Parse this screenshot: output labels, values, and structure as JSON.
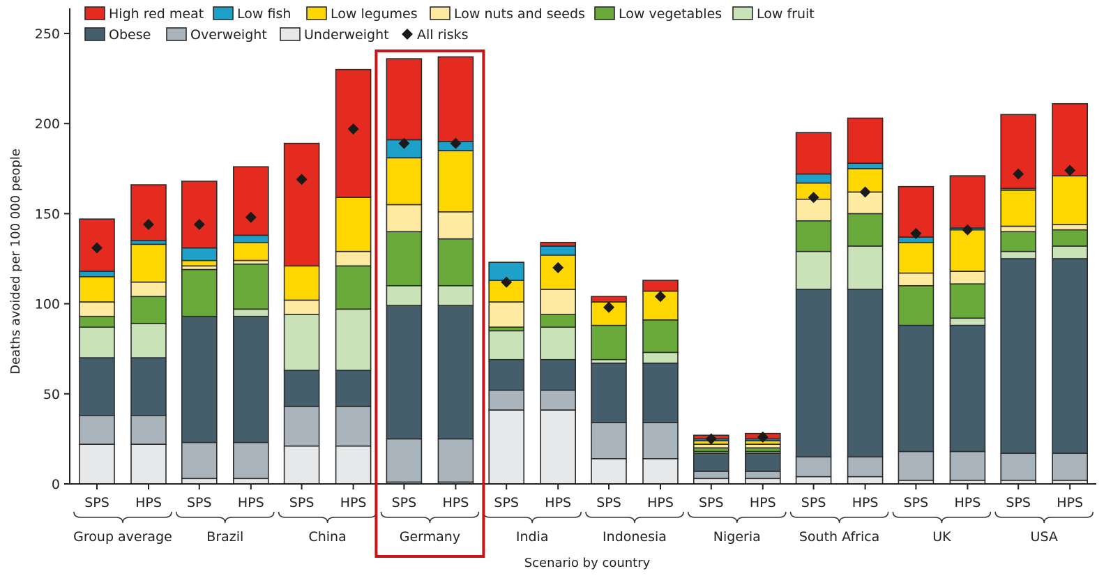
{
  "chart_data": {
    "type": "bar",
    "stacked": true,
    "xlabel": "Scenario by country",
    "ylabel": "Deaths avoided per 100 000 people",
    "ylim": [
      0,
      250
    ],
    "y_ticks": [
      "0",
      "50",
      "100",
      "150",
      "200",
      "250"
    ],
    "groups": [
      "Group average",
      "Brazil",
      "China",
      "Germany",
      "India",
      "Indonesia",
      "Nigeria",
      "South Africa",
      "UK",
      "USA"
    ],
    "categories": [
      "SPS",
      "HPS",
      "SPS",
      "HPS",
      "SPS",
      "HPS",
      "SPS",
      "HPS",
      "SPS",
      "HPS",
      "SPS",
      "HPS",
      "SPS",
      "HPS",
      "SPS",
      "HPS",
      "SPS",
      "HPS",
      "SPS",
      "HPS"
    ],
    "highlighted_group": "Germany",
    "legend_placement": "top",
    "series": [
      {
        "name": "Underweight",
        "color": "#e6e8ea",
        "values": [
          22,
          22,
          3,
          3,
          21,
          21,
          1,
          1,
          41,
          41,
          14,
          14,
          3,
          3,
          4,
          4,
          2,
          2,
          2,
          2
        ]
      },
      {
        "name": "Overweight",
        "color": "#aab4bd",
        "values": [
          16,
          16,
          20,
          20,
          22,
          22,
          24,
          24,
          11,
          11,
          20,
          20,
          4,
          4,
          11,
          11,
          16,
          16,
          15,
          15
        ]
      },
      {
        "name": "Obese",
        "color": "#455e6b",
        "values": [
          32,
          32,
          70,
          70,
          20,
          20,
          74,
          74,
          17,
          17,
          33,
          33,
          10,
          10,
          93,
          93,
          70,
          70,
          108,
          108
        ]
      },
      {
        "name": "Low fruit",
        "color": "#c9e2b8",
        "values": [
          17,
          19,
          0,
          4,
          31,
          34,
          11,
          11,
          16,
          18,
          2,
          6,
          1,
          1,
          21,
          24,
          0,
          4,
          4,
          7
        ]
      },
      {
        "name": "Low vegetables",
        "color": "#6aaa3a",
        "values": [
          6,
          15,
          26,
          25,
          0,
          24,
          30,
          26,
          2,
          7,
          19,
          18,
          2,
          2,
          17,
          18,
          22,
          19,
          11,
          9
        ]
      },
      {
        "name": "Low nuts  and seeds",
        "color": "#feeaa0",
        "values": [
          8,
          8,
          2,
          2,
          8,
          8,
          15,
          15,
          14,
          14,
          0,
          0,
          2,
          2,
          12,
          12,
          7,
          7,
          3,
          3
        ]
      },
      {
        "name": "Low legumes",
        "color": "#ffd700",
        "values": [
          14,
          21,
          3,
          10,
          19,
          30,
          26,
          34,
          12,
          19,
          13,
          16,
          2,
          2,
          9,
          13,
          17,
          23,
          20,
          27
        ]
      },
      {
        "name": "Low fish",
        "color": "#1da1c9",
        "values": [
          3,
          2,
          7,
          4,
          0,
          0,
          10,
          5,
          10,
          5,
          0,
          0,
          1,
          1,
          5,
          3,
          3,
          1,
          1,
          0
        ]
      },
      {
        "name": "High red meat",
        "color": "#e52b20",
        "values": [
          29,
          31,
          37,
          38,
          68,
          71,
          45,
          47,
          0,
          2,
          3,
          6,
          2,
          3,
          23,
          25,
          28,
          29,
          41,
          40
        ]
      }
    ],
    "all_risks": {
      "name": "All risks",
      "values": [
        131,
        144,
        144,
        148,
        169,
        197,
        189,
        189,
        112,
        120,
        98,
        104,
        25,
        26,
        159,
        162,
        139,
        141,
        172,
        174
      ]
    }
  }
}
